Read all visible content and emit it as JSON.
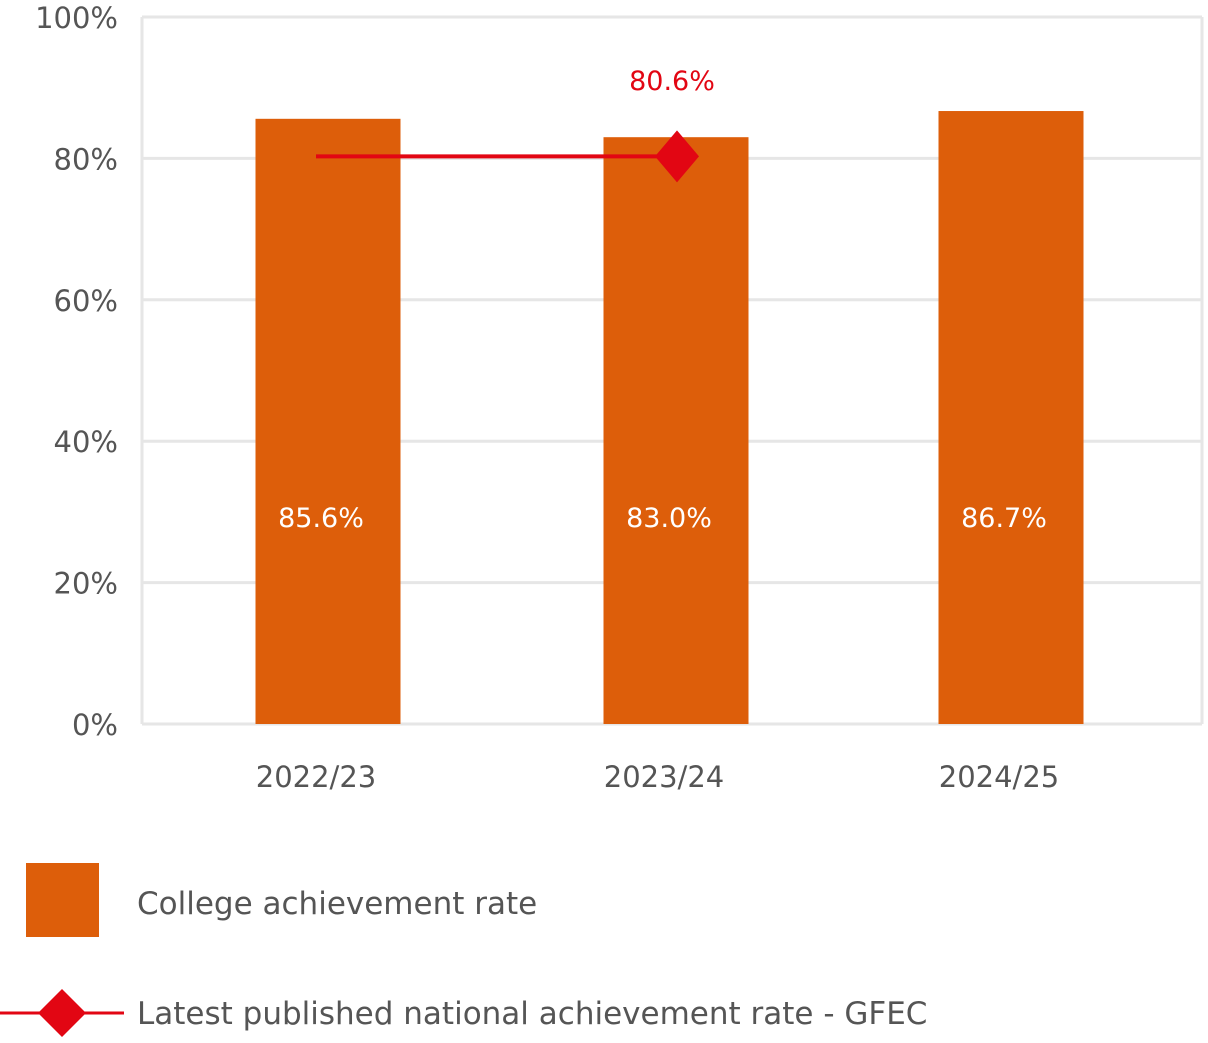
{
  "chart_data": {
    "type": "bar",
    "categories": [
      "2022/23",
      "2023/24",
      "2024/25"
    ],
    "series": [
      {
        "name": "College achievement rate",
        "type": "bar",
        "values": [
          85.6,
          83.0,
          86.7
        ],
        "labels": [
          "85.6%",
          "83.0%",
          "86.7%"
        ],
        "color": "#DD5E0A"
      },
      {
        "name": "Latest published national achievement rate - GFEC",
        "type": "line",
        "values": [
          80.6,
          80.6,
          null
        ],
        "marker": "diamond",
        "marker_at": "2023/24",
        "label": "80.6%",
        "color": "#E20613"
      }
    ],
    "ylim": [
      0,
      100
    ],
    "yticks": [
      "0%",
      "20%",
      "40%",
      "60%",
      "80%",
      "100%"
    ],
    "grid": true,
    "legend": "bottom",
    "xlabel": "",
    "ylabel": "",
    "title": ""
  }
}
